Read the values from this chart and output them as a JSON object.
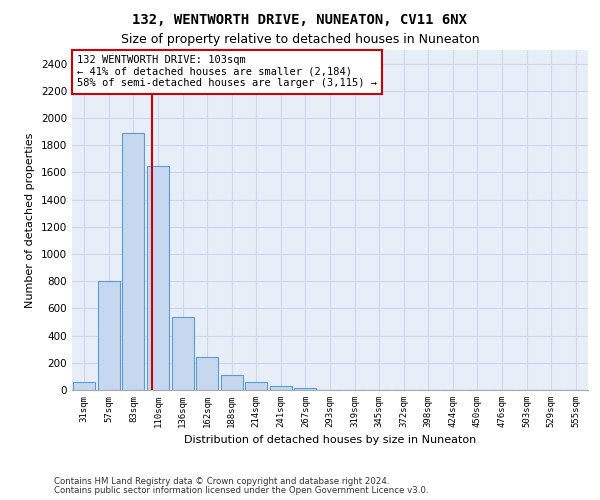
{
  "title1": "132, WENTWORTH DRIVE, NUNEATON, CV11 6NX",
  "title2": "Size of property relative to detached houses in Nuneaton",
  "xlabel": "Distribution of detached houses by size in Nuneaton",
  "ylabel": "Number of detached properties",
  "categories": [
    "31sqm",
    "57sqm",
    "83sqm",
    "110sqm",
    "136sqm",
    "162sqm",
    "188sqm",
    "214sqm",
    "241sqm",
    "267sqm",
    "293sqm",
    "319sqm",
    "345sqm",
    "372sqm",
    "398sqm",
    "424sqm",
    "450sqm",
    "476sqm",
    "503sqm",
    "529sqm",
    "555sqm"
  ],
  "values": [
    60,
    800,
    1890,
    1650,
    535,
    240,
    108,
    60,
    32,
    18,
    0,
    0,
    0,
    0,
    0,
    0,
    0,
    0,
    0,
    0,
    0
  ],
  "bar_color": "#c5d8f0",
  "bar_edge_color": "#5b9bd5",
  "grid_color": "#d0d8e8",
  "background_color": "#e8eef8",
  "vline_x": 2.75,
  "vline_color": "#cc0000",
  "annotation_line1": "132 WENTWORTH DRIVE: 103sqm",
  "annotation_line2": "← 41% of detached houses are smaller (2,184)",
  "annotation_line3": "58% of semi-detached houses are larger (3,115) →",
  "annotation_box_color": "#cc0000",
  "ylim": [
    0,
    2500
  ],
  "yticks": [
    0,
    200,
    400,
    600,
    800,
    1000,
    1200,
    1400,
    1600,
    1800,
    2000,
    2200,
    2400
  ],
  "footer1": "Contains HM Land Registry data © Crown copyright and database right 2024.",
  "footer2": "Contains public sector information licensed under the Open Government Licence v3.0."
}
